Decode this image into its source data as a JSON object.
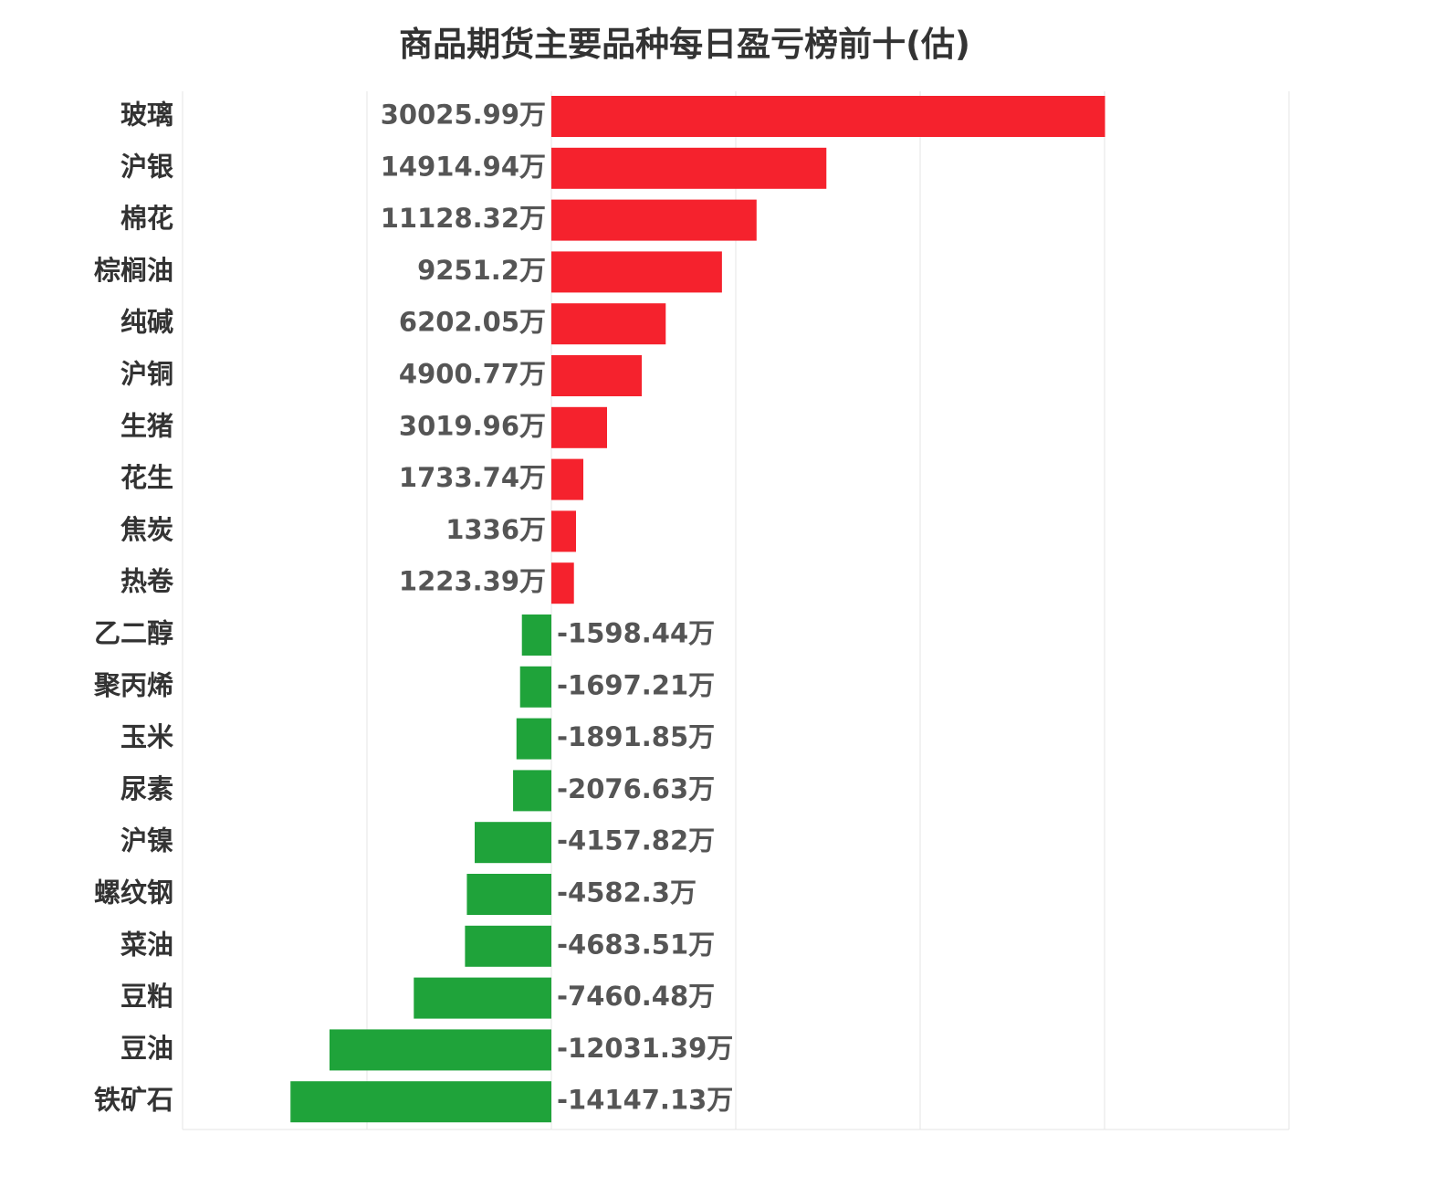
{
  "chart_data": {
    "type": "bar",
    "orientation": "horizontal",
    "title": "商品期货主要品种每日盈亏榜前十(估)",
    "xlabel": "",
    "ylabel": "",
    "unit": "万",
    "xlim": [
      -20000,
      40000
    ],
    "grid": true,
    "legend": "none",
    "colors": {
      "positive": "#f5222d",
      "negative": "#1fa33a"
    },
    "categories": [
      "玻璃",
      "沪银",
      "棉花",
      "棕榈油",
      "纯碱",
      "沪铜",
      "生猪",
      "花生",
      "焦炭",
      "热卷",
      "乙二醇",
      "聚丙烯",
      "玉米",
      "尿素",
      "沪镍",
      "螺纹钢",
      "菜油",
      "豆粕",
      "豆油",
      "铁矿石"
    ],
    "values": [
      30025.99,
      14914.94,
      11128.32,
      9251.2,
      6202.05,
      4900.77,
      3019.96,
      1733.74,
      1336,
      1223.39,
      -1598.44,
      -1697.21,
      -1891.85,
      -2076.63,
      -4157.82,
      -4582.3,
      -4683.51,
      -7460.48,
      -12031.39,
      -14147.13
    ],
    "value_labels": [
      "30025.99万",
      "14914.94万",
      "11128.32万",
      "9251.2万",
      "6202.05万",
      "4900.77万",
      "3019.96万",
      "1733.74万",
      "1336万",
      "1223.39万",
      "-1598.44万",
      "-1697.21万",
      "-1891.85万",
      "-2076.63万",
      "-4157.82万",
      "-4582.3万",
      "-4683.51万",
      "-7460.48万",
      "-12031.39万",
      "-14147.13万"
    ]
  }
}
